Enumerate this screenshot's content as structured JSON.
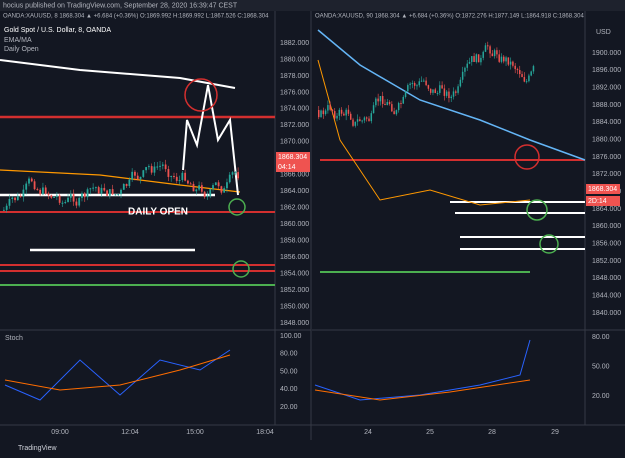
{
  "header": {
    "publisher": "hocius published on TradingView.com, September 28, 2020 16:39:47 CEST"
  },
  "left": {
    "info": "OANDA:XAUUSD, 8  1868.304 ▲ +6.684 (+0.36%) O:1869.992 H:1869.992 L:1867.526 C:1868.304",
    "legend": [
      "Gold Spot / U.S. Dollar, 8, OANDA",
      "EMA/MA",
      "Daily Open"
    ],
    "annotation": "DAILY OPEN",
    "price_ticks": [
      "1882.000",
      "1880.000",
      "1878.000",
      "1876.000",
      "1874.000",
      "1872.000",
      "1870.000",
      "1868.000",
      "1866.000",
      "1864.000",
      "1862.000",
      "1860.000",
      "1858.000",
      "1856.000",
      "1854.000",
      "1852.000",
      "1850.000",
      "1848.000"
    ],
    "last_price": "1868.304",
    "countdown": "04:14",
    "stoch_label": "Stoch",
    "stoch_ticks": [
      "100.00",
      "80.00",
      "50.00",
      "40.00",
      "20.00"
    ],
    "time_ticks": [
      "09:00",
      "12:04",
      "15:00",
      "18:04"
    ]
  },
  "right": {
    "info": "OANDA:XAUUSD, 90  1868.304 ▲ +6.684 (+0.36%) O:1872.276 H:1877.149 L:1864.918 C:1868.304",
    "currency": "USD",
    "price_ticks": [
      "1900.000",
      "1896.000",
      "1892.000",
      "1888.000",
      "1884.000",
      "1880.000",
      "1876.000",
      "1872.000",
      "1868.000",
      "1864.000",
      "1860.000",
      "1856.000",
      "1852.000",
      "1848.000",
      "1844.000",
      "1840.000"
    ],
    "last_price": "1868.304",
    "countdown": "2D:14",
    "stoch_ticks": [
      "80.00",
      "50.00",
      "20.00"
    ],
    "time_ticks": [
      "24",
      "25",
      "28",
      "29"
    ]
  },
  "footer": {
    "brand": "TradingView"
  }
}
